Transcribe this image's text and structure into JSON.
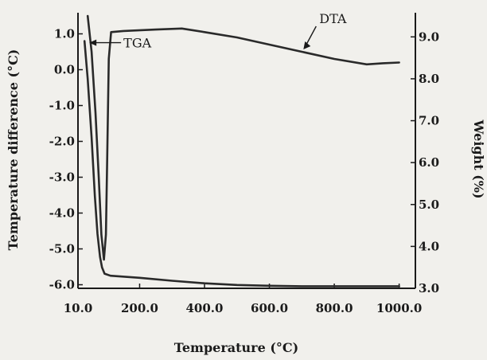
{
  "chart_data": {
    "type": "line",
    "title": "",
    "xlabel": "Temperature (°C)",
    "ylabel_left": "Temperature difference (°C)",
    "ylabel_right": "Weight (%)",
    "xlim": [
      10,
      1050
    ],
    "ylim_left": [
      -6.1,
      1.5
    ],
    "ylim_right": [
      3.0,
      9.5
    ],
    "x_ticks": [
      {
        "value": 10,
        "label": "10.0"
      },
      {
        "value": 200,
        "label": "200.0"
      },
      {
        "value": 400,
        "label": "400.0"
      },
      {
        "value": 600,
        "label": "600.0"
      },
      {
        "value": 800,
        "label": "800.0"
      },
      {
        "value": 1000,
        "label": "1000.0"
      }
    ],
    "y_ticks_left": [
      {
        "value": 1.0,
        "label": "1.0"
      },
      {
        "value": 0.0,
        "label": "0.0"
      },
      {
        "value": -1.0,
        "label": "-1.0"
      },
      {
        "value": -2.0,
        "label": "-2.0"
      },
      {
        "value": -3.0,
        "label": "-3.0"
      },
      {
        "value": -4.0,
        "label": "-4.0"
      },
      {
        "value": -5.0,
        "label": "-5.0"
      },
      {
        "value": -6.0,
        "label": "-6.0"
      }
    ],
    "y_ticks_right": [
      {
        "value": 9.0,
        "label": "9.0"
      },
      {
        "value": 8.0,
        "label": "8.0"
      },
      {
        "value": 7.0,
        "label": "7.0"
      },
      {
        "value": 6.0,
        "label": "6.0"
      },
      {
        "value": 5.0,
        "label": "5.0"
      },
      {
        "value": 4.0,
        "label": "4.0"
      },
      {
        "value": 3.0,
        "label": "3.0"
      }
    ],
    "grid": false,
    "series": [
      {
        "name": "DTA",
        "axis": "left",
        "color": "#2a2a2a",
        "x": [
          40,
          52,
          64,
          74,
          82,
          90,
          96,
          100,
          105,
          112,
          150,
          250,
          330,
          400,
          500,
          600,
          700,
          800,
          900,
          950,
          1000
        ],
        "y": [
          1.5,
          0.5,
          -1.2,
          -3.0,
          -4.6,
          -5.3,
          -4.6,
          -2.5,
          0.3,
          1.05,
          1.08,
          1.12,
          1.15,
          1.05,
          0.9,
          0.7,
          0.5,
          0.3,
          0.15,
          0.18,
          0.2
        ]
      },
      {
        "name": "TGA",
        "axis": "right",
        "color": "#2a2a2a",
        "x": [
          30,
          40,
          52,
          62,
          70,
          78,
          84,
          92,
          110,
          200,
          300,
          400,
          500,
          600,
          700,
          800,
          900,
          1000
        ],
        "y": [
          8.9,
          8.0,
          6.6,
          5.2,
          4.3,
          3.75,
          3.5,
          3.35,
          3.3,
          3.25,
          3.18,
          3.12,
          3.08,
          3.06,
          3.05,
          3.05,
          3.05,
          3.05
        ]
      }
    ],
    "annotations": [
      {
        "text": "TGA",
        "series": "TGA",
        "position": "upper-left"
      },
      {
        "text": "DTA",
        "series": "DTA",
        "position": "top-right"
      }
    ]
  }
}
